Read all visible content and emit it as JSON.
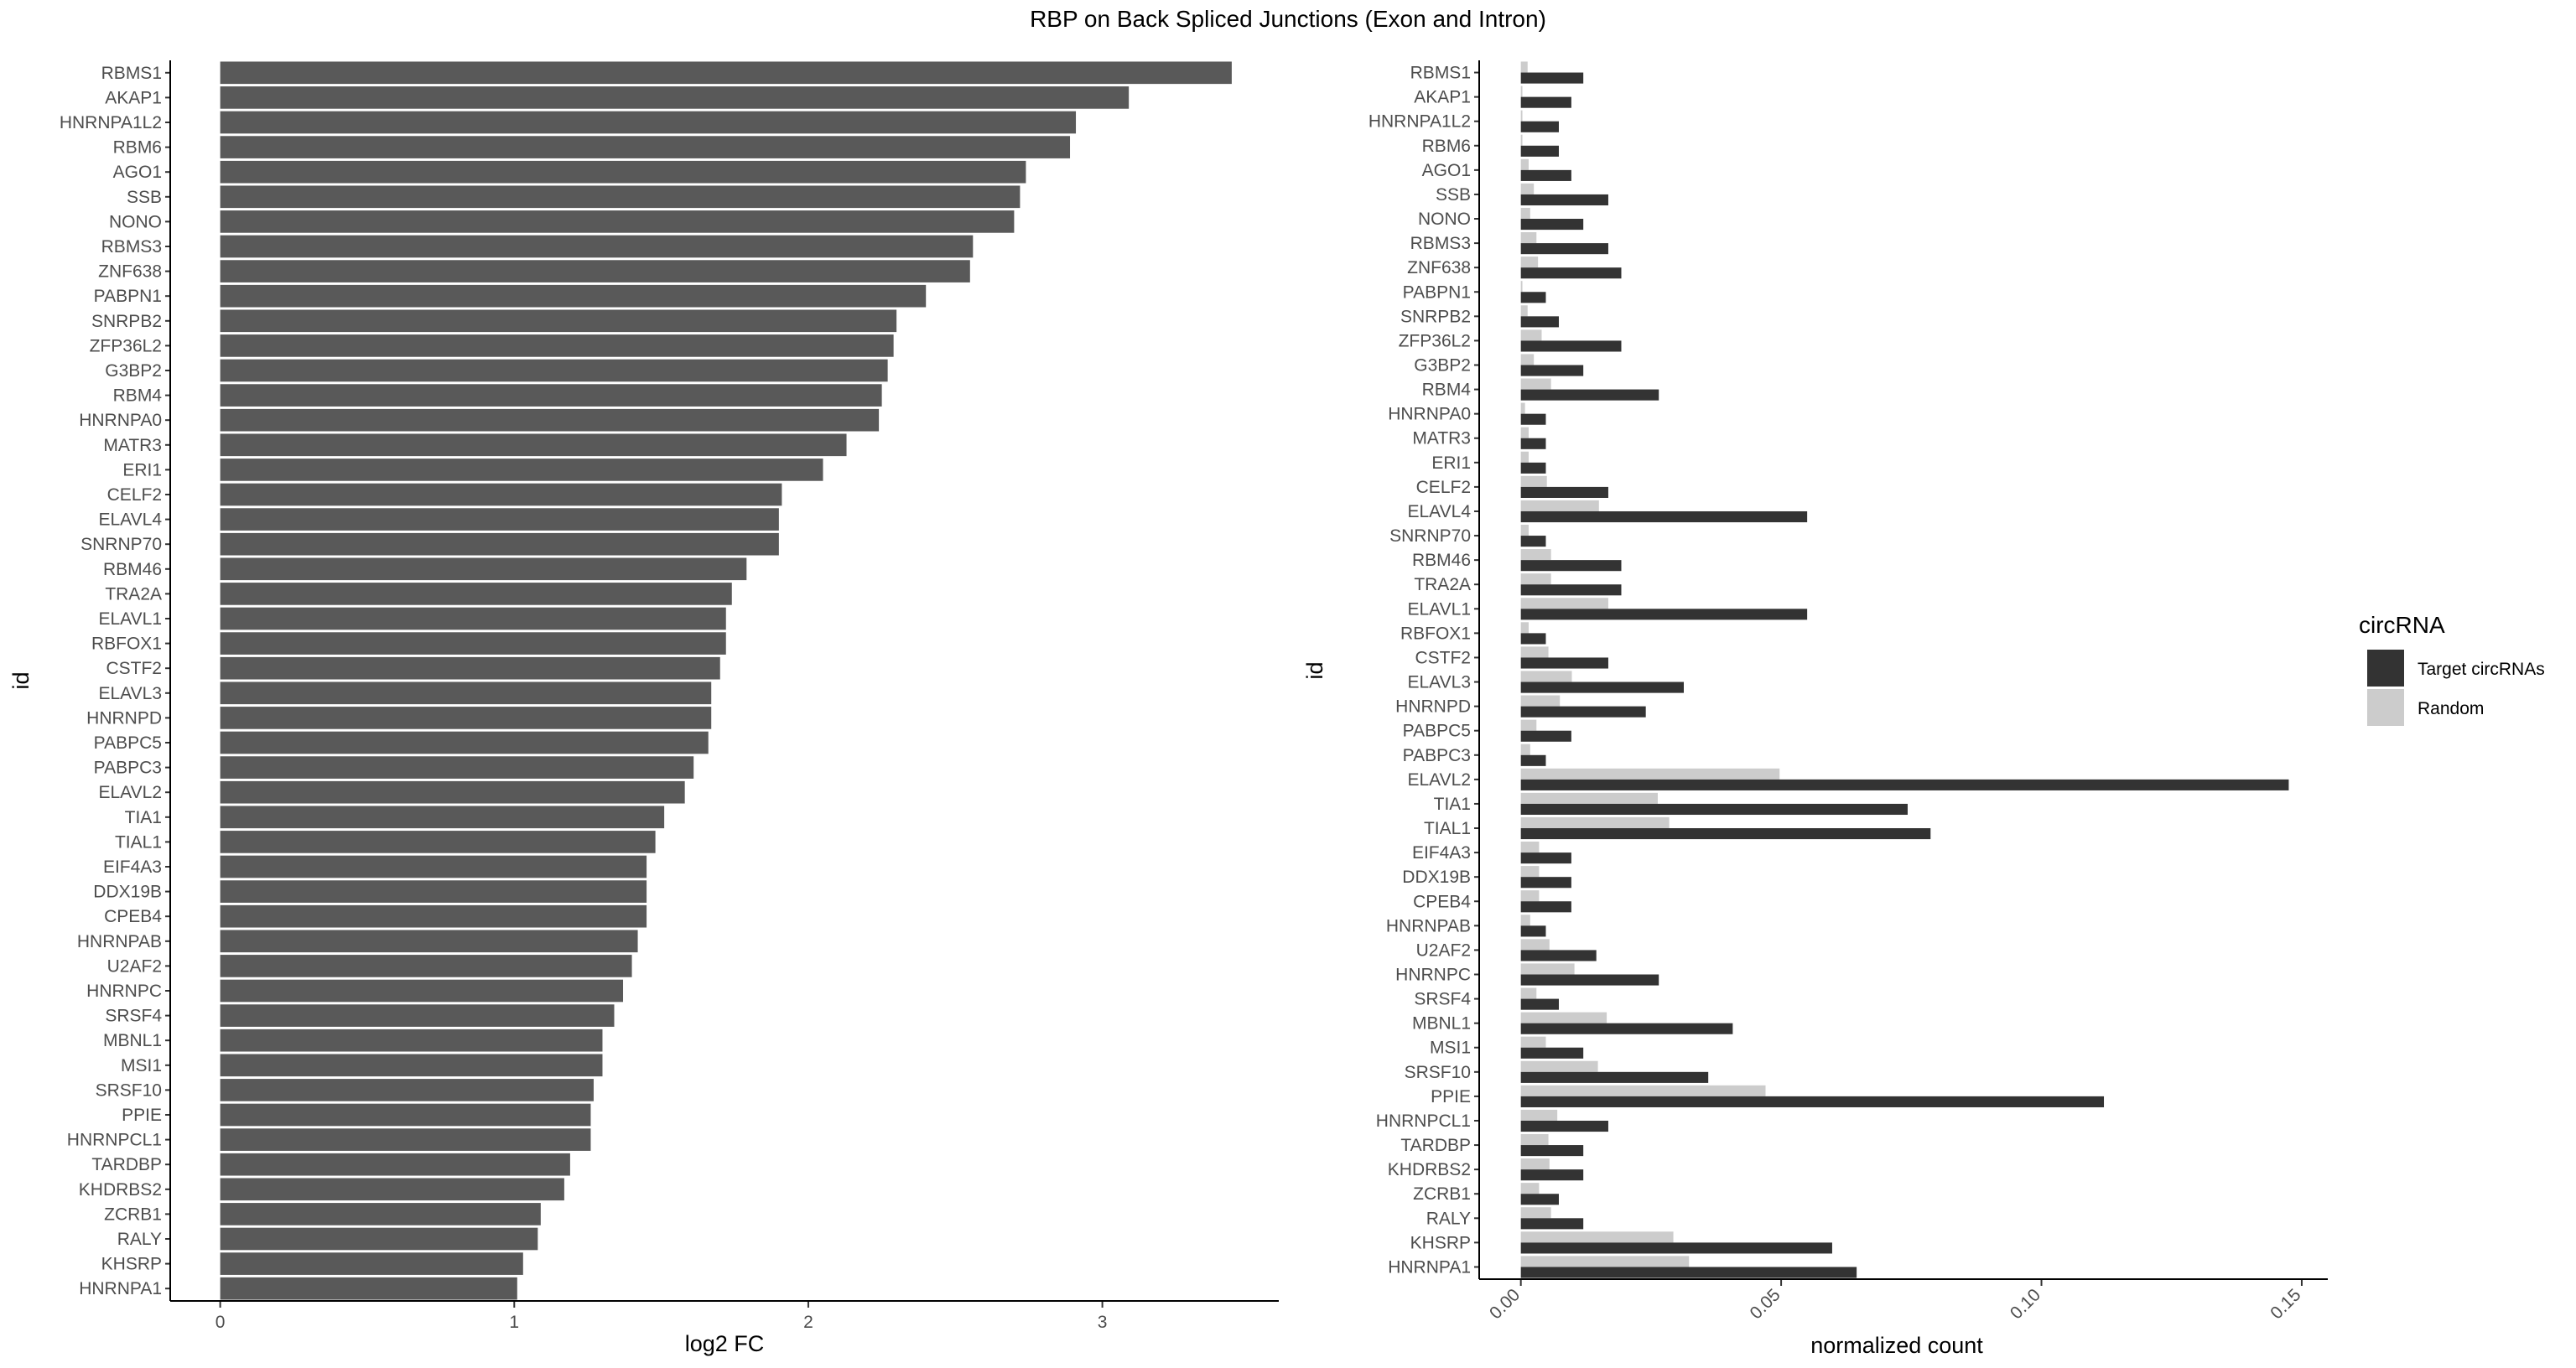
{
  "chart_data": [
    {
      "type": "bar",
      "orientation": "horizontal",
      "title": "RBP on Back Spliced Junctions (Exon and Intron)",
      "xlabel": "log2 FC",
      "ylabel": "id",
      "xlim": [
        -0.17,
        3.6
      ],
      "xticks": [
        0,
        1,
        2,
        3
      ],
      "grid": false,
      "colors": {
        "bar": "#595959"
      },
      "categories": [
        "RBMS1",
        "AKAP1",
        "HNRNPA1L2",
        "RBM6",
        "AGO1",
        "SSB",
        "NONO",
        "RBMS3",
        "ZNF638",
        "PABPN1",
        "SNRPB2",
        "ZFP36L2",
        "G3BP2",
        "RBM4",
        "HNRNPA0",
        "MATR3",
        "ERI1",
        "CELF2",
        "ELAVL4",
        "SNRNP70",
        "RBM46",
        "TRA2A",
        "ELAVL1",
        "RBFOX1",
        "CSTF2",
        "ELAVL3",
        "HNRNPD",
        "PABPC5",
        "PABPC3",
        "ELAVL2",
        "TIA1",
        "TIAL1",
        "EIF4A3",
        "DDX19B",
        "CPEB4",
        "HNRNPAB",
        "U2AF2",
        "HNRNPC",
        "SRSF4",
        "MBNL1",
        "MSI1",
        "SRSF10",
        "PPIE",
        "HNRNPCL1",
        "TARDBP",
        "KHDRBS2",
        "ZCRB1",
        "RALY",
        "KHSRP",
        "HNRNPA1"
      ],
      "values": [
        3.44,
        3.09,
        2.91,
        2.89,
        2.74,
        2.72,
        2.7,
        2.56,
        2.55,
        2.4,
        2.3,
        2.29,
        2.27,
        2.25,
        2.24,
        2.13,
        2.05,
        1.91,
        1.9,
        1.9,
        1.79,
        1.74,
        1.72,
        1.72,
        1.7,
        1.67,
        1.67,
        1.66,
        1.61,
        1.58,
        1.51,
        1.48,
        1.45,
        1.45,
        1.45,
        1.42,
        1.4,
        1.37,
        1.34,
        1.3,
        1.3,
        1.27,
        1.26,
        1.26,
        1.19,
        1.17,
        1.09,
        1.08,
        1.03,
        1.01
      ]
    },
    {
      "type": "bar",
      "orientation": "horizontal",
      "grouping": "dodge",
      "xlabel": "normalized count",
      "ylabel": "id",
      "xlim": [
        -0.008,
        0.155
      ],
      "xticks": [
        "0.00",
        "0.05",
        "0.10",
        "0.15"
      ],
      "grid": false,
      "legend": {
        "title": "circRNA",
        "position": "right"
      },
      "categories": [
        "RBMS1",
        "AKAP1",
        "HNRNPA1L2",
        "RBM6",
        "AGO1",
        "SSB",
        "NONO",
        "RBMS3",
        "ZNF638",
        "PABPN1",
        "SNRPB2",
        "ZFP36L2",
        "G3BP2",
        "RBM4",
        "HNRNPA0",
        "MATR3",
        "ERI1",
        "CELF2",
        "ELAVL4",
        "SNRNP70",
        "RBM46",
        "TRA2A",
        "ELAVL1",
        "RBFOX1",
        "CSTF2",
        "ELAVL3",
        "HNRNPD",
        "PABPC5",
        "PABPC3",
        "ELAVL2",
        "TIA1",
        "TIAL1",
        "EIF4A3",
        "DDX19B",
        "CPEB4",
        "HNRNPAB",
        "U2AF2",
        "HNRNPC",
        "SRSF4",
        "MBNL1",
        "MSI1",
        "SRSF10",
        "PPIE",
        "HNRNPCL1",
        "TARDBP",
        "KHDRBS2",
        "ZCRB1",
        "RALY",
        "KHSRP",
        "HNRNPA1"
      ],
      "series": [
        {
          "name": "Target circRNAs",
          "color": "#333333",
          "values": [
            0.012,
            0.0097,
            0.0073,
            0.0073,
            0.0097,
            0.0168,
            0.012,
            0.0168,
            0.0193,
            0.0048,
            0.0073,
            0.0193,
            0.012,
            0.0265,
            0.0048,
            0.0048,
            0.0048,
            0.0168,
            0.055,
            0.0048,
            0.0193,
            0.0193,
            0.055,
            0.0048,
            0.0168,
            0.0313,
            0.024,
            0.0097,
            0.0048,
            0.1475,
            0.0743,
            0.0787,
            0.0097,
            0.0097,
            0.0097,
            0.0048,
            0.0145,
            0.0265,
            0.0073,
            0.0407,
            0.012,
            0.036,
            0.112,
            0.0168,
            0.012,
            0.012,
            0.0073,
            0.012,
            0.0598,
            0.0645
          ]
        },
        {
          "name": "Random",
          "color": "#cccccc",
          "values": [
            0.0013,
            0.0003,
            0.0003,
            0.0003,
            0.0015,
            0.0025,
            0.0018,
            0.003,
            0.0033,
            0.0003,
            0.0013,
            0.004,
            0.0025,
            0.0058,
            0.0008,
            0.0015,
            0.0015,
            0.005,
            0.015,
            0.0015,
            0.0058,
            0.0058,
            0.0168,
            0.0015,
            0.0053,
            0.0098,
            0.0075,
            0.003,
            0.0018,
            0.0497,
            0.0263,
            0.0285,
            0.0035,
            0.0035,
            0.0035,
            0.0018,
            0.0055,
            0.0103,
            0.003,
            0.0165,
            0.0048,
            0.0148,
            0.047,
            0.007,
            0.0053,
            0.0055,
            0.0035,
            0.0058,
            0.0293,
            0.0323
          ]
        }
      ]
    }
  ]
}
